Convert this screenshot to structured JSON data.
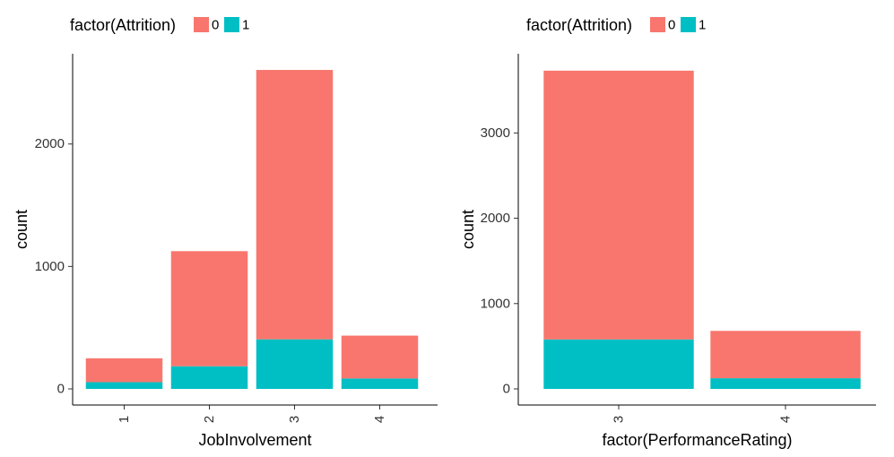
{
  "chart_data": [
    {
      "type": "bar",
      "stacked": true,
      "xlabel": "JobInvolvement",
      "ylabel": "count",
      "categories": [
        "1",
        "2",
        "3",
        "4"
      ],
      "series": [
        {
          "name": "0",
          "color": "#F8766D",
          "values": [
            195,
            940,
            2200,
            350
          ]
        },
        {
          "name": "1",
          "color": "#00BFC4",
          "values": [
            55,
            185,
            405,
            85
          ]
        }
      ],
      "ylim": [
        0,
        2620
      ],
      "yticks": [
        0,
        1000,
        2000
      ],
      "legend": {
        "title": "factor(Attrition)",
        "position": "top-left"
      },
      "grid": false
    },
    {
      "type": "bar",
      "stacked": true,
      "xlabel": "factor(PerformanceRating)",
      "ylabel": "count",
      "categories": [
        "3",
        "4"
      ],
      "series": [
        {
          "name": "0",
          "color": "#F8766D",
          "values": [
            3150,
            555
          ]
        },
        {
          "name": "1",
          "color": "#00BFC4",
          "values": [
            580,
            125
          ]
        }
      ],
      "ylim": [
        0,
        3760
      ],
      "yticks": [
        0,
        1000,
        2000,
        3000
      ],
      "legend": {
        "title": "factor(Attrition)",
        "position": "top-left"
      },
      "grid": false
    }
  ]
}
